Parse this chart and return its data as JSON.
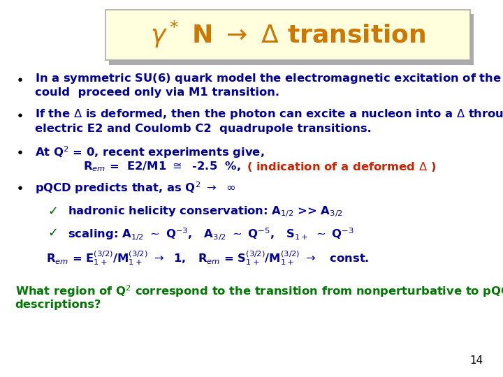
{
  "bg_color": "#ffffff",
  "title_box_color": "#ffffdd",
  "title_box_edge": "#aaaaaa",
  "title_color": "#cc7700",
  "bullet_color": "#000099",
  "red_color": "#cc2200",
  "green_color": "#007700",
  "dark_green": "#006600",
  "page_number": "14",
  "title_fontsize": 26,
  "body_fontsize": 11.8
}
